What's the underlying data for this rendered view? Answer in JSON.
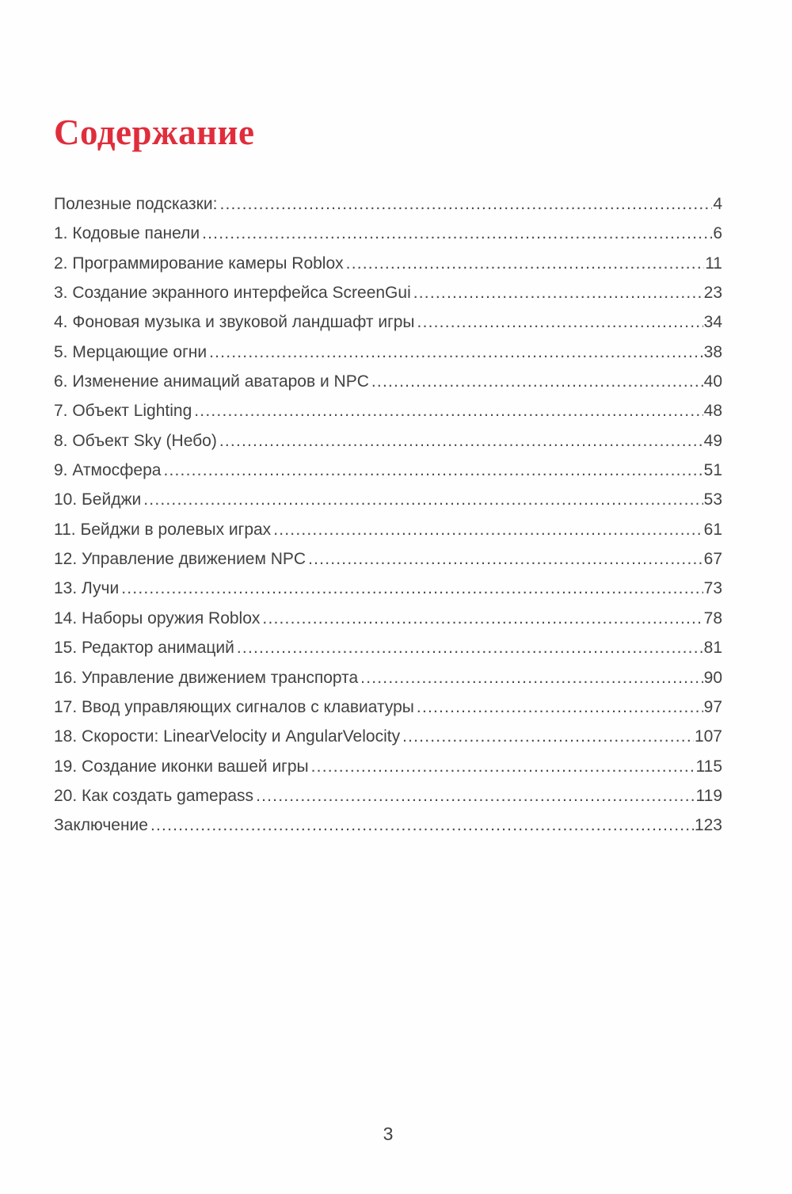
{
  "page": {
    "title": "Содержание",
    "folio": "3"
  },
  "colors": {
    "title_red": "#e02d3c",
    "body_text": "#424242",
    "leader_dot": "#4a4a4a",
    "page_bg": "#fefefe"
  },
  "toc": {
    "entries": [
      {
        "label": "Полезные подсказки:",
        "page": "4"
      },
      {
        "label": "1. Кодовые панели",
        "page": "6"
      },
      {
        "label": "2. Программирование камеры Roblox",
        "page": "11"
      },
      {
        "label": "3. Создание экранного интерфейса ScreenGui",
        "page": "23"
      },
      {
        "label": "4. Фоновая музыка и звуковой ландшафт игры",
        "page": "34"
      },
      {
        "label": "5. Мерцающие огни",
        "page": "38"
      },
      {
        "label": "6. Изменение анимаций аватаров и NPC",
        "page": "40"
      },
      {
        "label": "7. Объект Lighting",
        "page": "48"
      },
      {
        "label": "8. Объект Sky (Небо)",
        "page": "49"
      },
      {
        "label": "9. Атмосфера",
        "page": "51"
      },
      {
        "label": "10. Бейджи",
        "page": "53"
      },
      {
        "label": "11. Бейджи в ролевых играх",
        "page": "61"
      },
      {
        "label": "12. Управление движением NPC",
        "page": "67"
      },
      {
        "label": "13. Лучи",
        "page": "73"
      },
      {
        "label": "14. Наборы оружия Roblox",
        "page": "78"
      },
      {
        "label": "15. Редактор анимаций",
        "page": "81"
      },
      {
        "label": "16. Управление движением транспорта",
        "page": "90"
      },
      {
        "label": "17. Ввод управляющих сигналов с клавиатуры",
        "page": "97"
      },
      {
        "label": "18. Скорости: LinearVelocity и AngularVelocity",
        "page": "107"
      },
      {
        "label": "19. Создание иконки вашей игры",
        "page": "115"
      },
      {
        "label": "20. Как создать gamepass",
        "page": "119"
      },
      {
        "label": "Заключение",
        "page": "123"
      }
    ]
  }
}
